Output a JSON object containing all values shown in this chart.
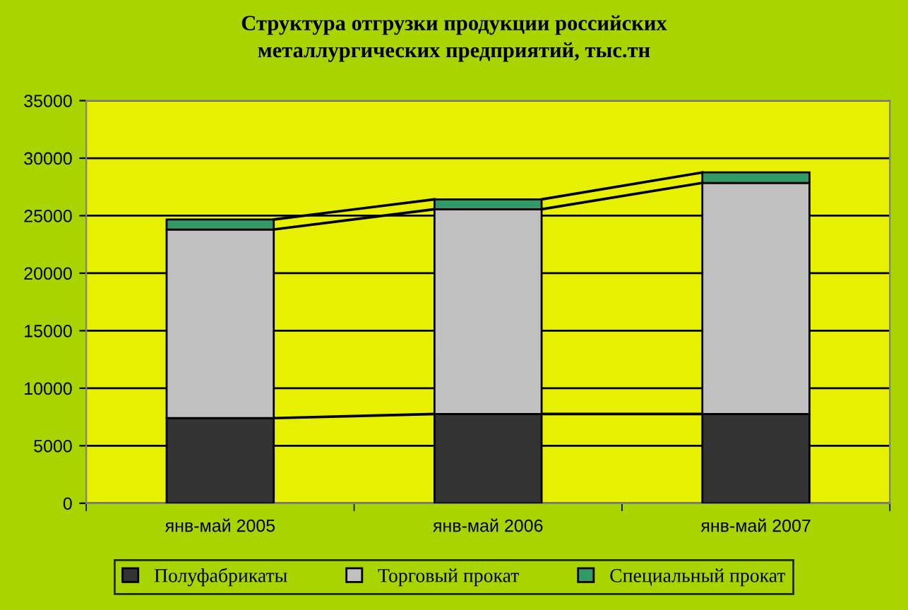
{
  "chart_data": {
    "type": "bar",
    "stacked": true,
    "title": "Структура отгрузки продукции российских\nметаллургических предприятий, тыс.тн",
    "categories": [
      "янв-май 2005",
      "янв-май 2006",
      "янв-май 2007"
    ],
    "series": [
      {
        "name": "Полуфабрикаты",
        "color": "#333333",
        "values": [
          7400,
          7760,
          7760
        ]
      },
      {
        "name": "Торговый прокат",
        "color": "#c0c0c0",
        "values": [
          16400,
          17800,
          20090
        ]
      },
      {
        "name": "Специальный прокат",
        "color": "#339966",
        "values": [
          870,
          860,
          910
        ]
      }
    ],
    "ylim": [
      0,
      35000
    ],
    "yticks": [
      0,
      5000,
      10000,
      15000,
      20000,
      25000,
      30000,
      35000
    ],
    "grid": "y",
    "legend": "bottom"
  }
}
